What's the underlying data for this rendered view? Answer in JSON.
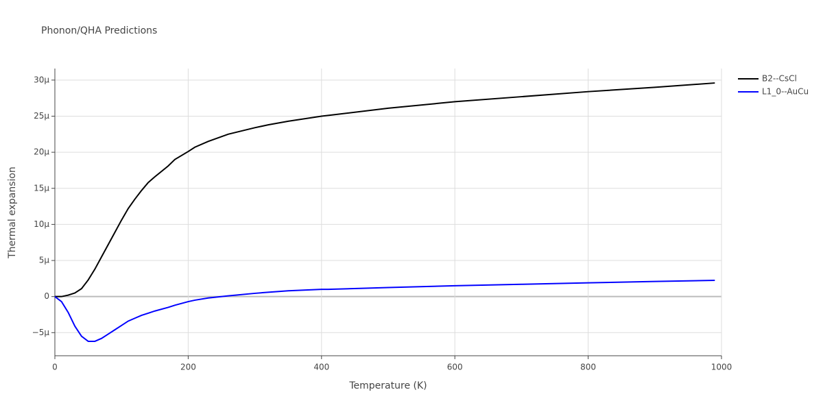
{
  "chart_data": {
    "type": "line",
    "title": "Phonon/QHA Predictions",
    "x_label": "Temperature (K)",
    "y_label": "Thermal expansion",
    "x": [
      0,
      10,
      20,
      30,
      40,
      50,
      60,
      70,
      80,
      90,
      100,
      110,
      120,
      130,
      140,
      150,
      170,
      180,
      200,
      210,
      230,
      260,
      300,
      320,
      350,
      400,
      410,
      500,
      600,
      700,
      800,
      900,
      990
    ],
    "series": [
      {
        "name": "B2--CsCl",
        "color": "#000000",
        "values": [
          0,
          0,
          2e-07,
          5e-07,
          1.1e-06,
          2.3e-06,
          3.8e-06,
          5.5e-06,
          7.2e-06,
          8.9e-06,
          1.06e-05,
          1.22e-05,
          1.35e-05,
          1.47e-05,
          1.58e-05,
          1.66e-05,
          1.81e-05,
          1.9e-05,
          2.01e-05,
          2.07e-05,
          2.15e-05,
          2.25e-05,
          2.34e-05,
          2.38e-05,
          2.43e-05,
          2.5e-05,
          2.51e-05,
          2.61e-05,
          2.7e-05,
          2.77e-05,
          2.84e-05,
          2.9e-05,
          2.96e-05
        ]
      },
      {
        "name": "L1_0--AuCu",
        "color": "#0000ff",
        "values": [
          0,
          -7e-07,
          -2.2e-06,
          -4.1e-06,
          -5.5e-06,
          -6.2e-06,
          -6.2e-06,
          -5.8e-06,
          -5.2e-06,
          -4.6e-06,
          -4e-06,
          -3.4e-06,
          -3e-06,
          -2.6e-06,
          -2.3e-06,
          -2e-06,
          -1.5e-06,
          -1.2e-06,
          -7e-07,
          -5e-07,
          -2e-07,
          1e-07,
          4.5e-07,
          6e-07,
          8e-07,
          1e-06,
          1e-06,
          1.25e-06,
          1.5e-06,
          1.7e-06,
          1.9e-06,
          2.1e-06,
          2.25e-06
        ]
      }
    ],
    "xlim": [
      0,
      1000
    ],
    "xticks": [
      0,
      200,
      400,
      600,
      800,
      1000
    ],
    "ylim": [
      -8.2e-06,
      3.16e-05
    ],
    "yticks": [
      {
        "value": -5e-06,
        "label": "−5μ"
      },
      0,
      {
        "value": 5e-06,
        "label": "5μ"
      },
      {
        "value": 1e-05,
        "label": "10μ"
      },
      {
        "value": 1.5e-05,
        "label": "15μ"
      },
      {
        "value": 2e-05,
        "label": "20μ"
      },
      {
        "value": 2.5e-05,
        "label": "25μ"
      },
      {
        "value": 3e-05,
        "label": "30μ"
      }
    ],
    "grid": true,
    "legend": "top-right"
  }
}
